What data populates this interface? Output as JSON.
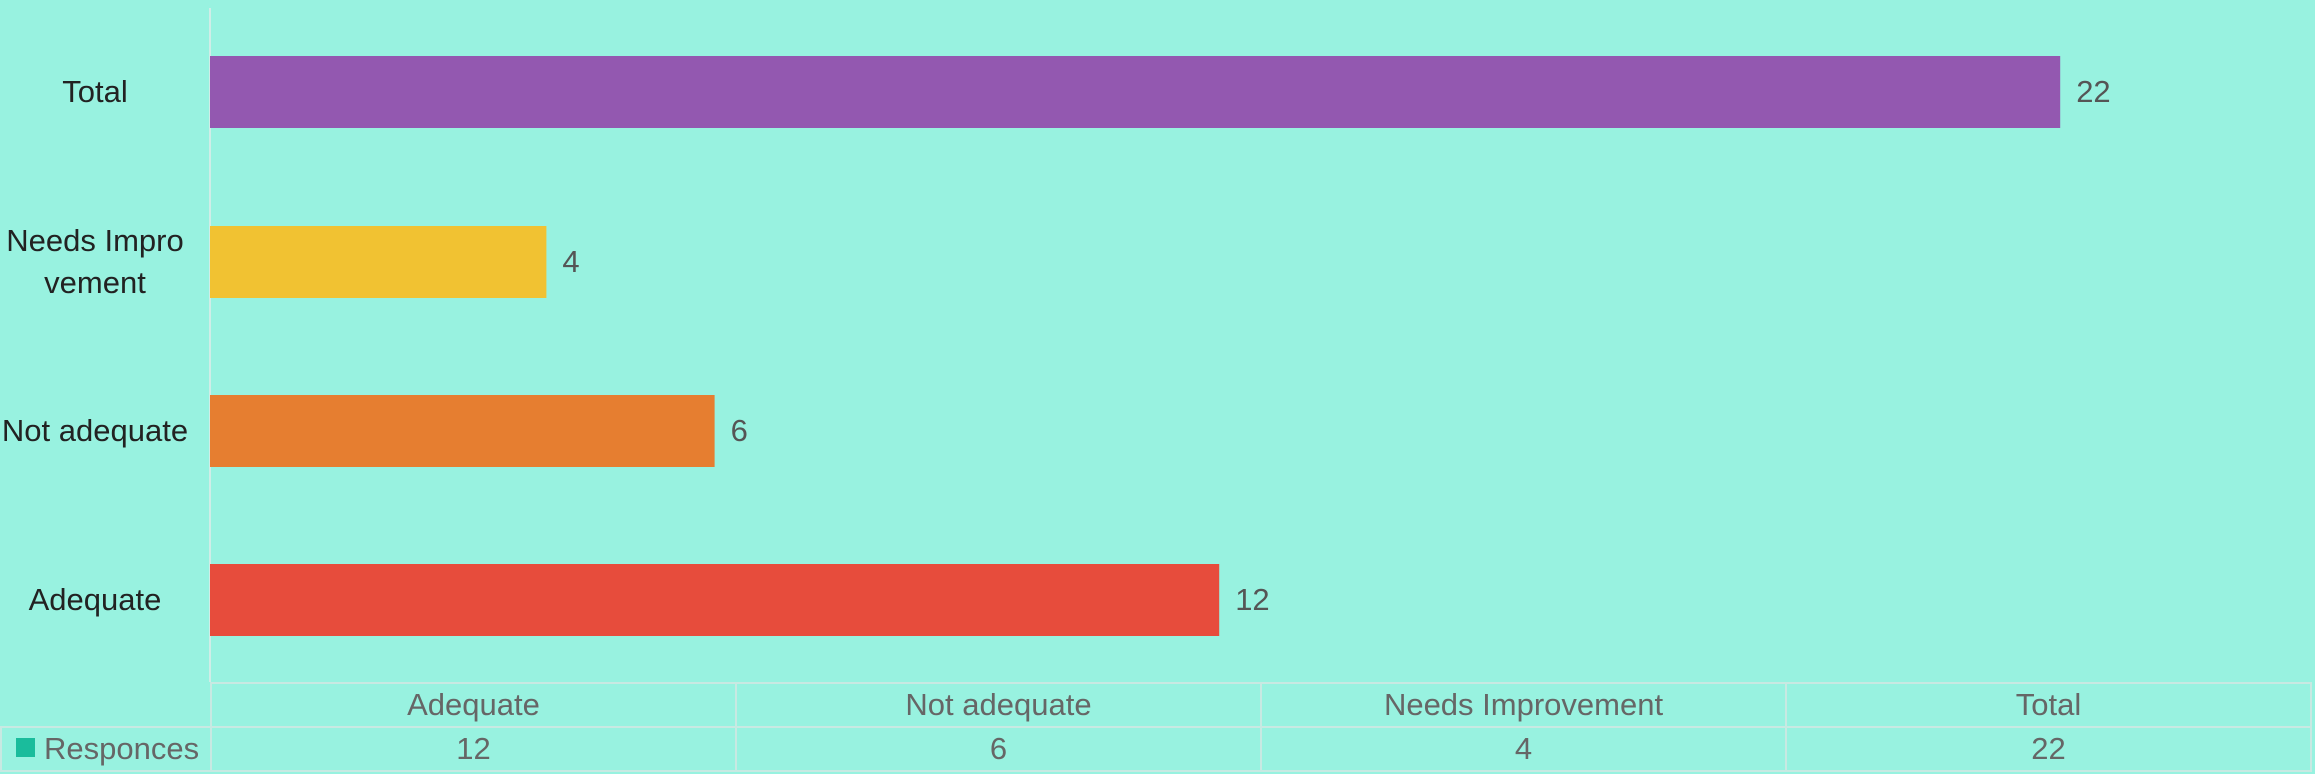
{
  "chart_data": {
    "type": "bar",
    "orientation": "horizontal",
    "categories": [
      "Adequate",
      "Not adequate",
      "Needs Improvement",
      "Total"
    ],
    "values": [
      12,
      6,
      4,
      22
    ],
    "bar_colors": [
      "#e74c3c",
      "#e67e30",
      "#f1c232",
      "#9358b0"
    ],
    "series": [
      {
        "name": "Responces",
        "values": [
          12,
          6,
          4,
          22
        ]
      }
    ],
    "legend_color": "#1abc9c",
    "xlim": [
      0,
      25
    ],
    "grid": false,
    "data_table": true,
    "value_labels": true
  },
  "colors": {
    "background": "#98f2e0",
    "axis": "#d0ede7"
  }
}
